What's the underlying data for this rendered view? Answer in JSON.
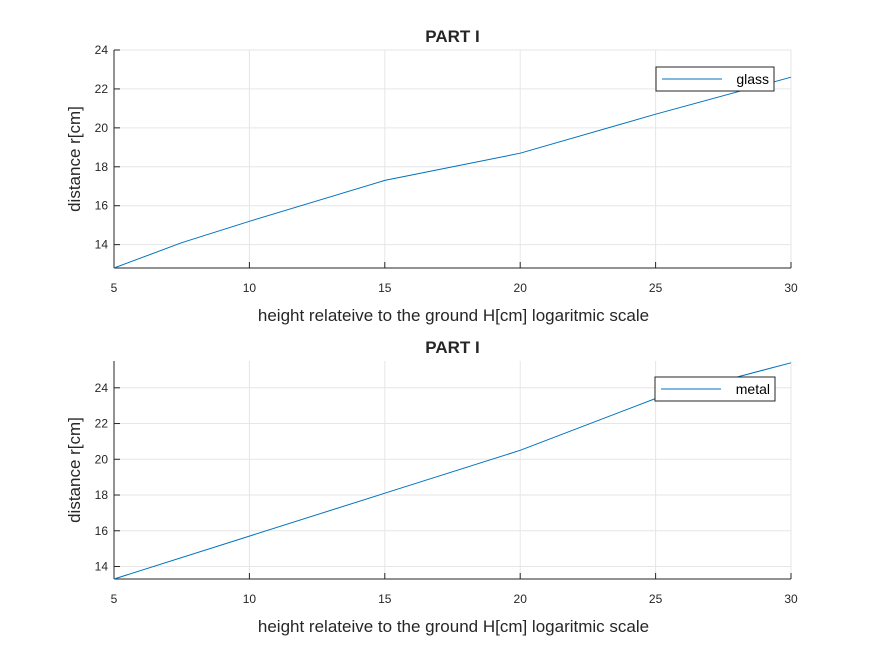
{
  "figure": {
    "background": "#ffffff",
    "line_color": "#0072BD",
    "grid_color": "#e6e6e6"
  },
  "chart_data": [
    {
      "type": "line",
      "title": "PART I",
      "xlabel": "height relateive to the ground H[cm] logaritmic scale",
      "ylabel": "distance r[cm]",
      "xlim": [
        5,
        30
      ],
      "ylim": [
        12.8,
        24
      ],
      "xticks": [
        5,
        10,
        15,
        20,
        25,
        30
      ],
      "yticks": [
        14,
        16,
        18,
        20,
        22,
        24
      ],
      "grid": true,
      "legend_position": "top-right",
      "series": [
        {
          "name": "glass",
          "x": [
            5,
            7.5,
            10,
            15,
            20,
            25,
            30
          ],
          "y": [
            12.8,
            14.1,
            15.2,
            17.3,
            18.7,
            20.7,
            22.6
          ]
        }
      ]
    },
    {
      "type": "line",
      "title": "PART I",
      "xlabel": "height relateive to the ground H[cm] logaritmic scale",
      "ylabel": "distance r[cm]",
      "xlim": [
        5,
        30
      ],
      "ylim": [
        13.3,
        25.5
      ],
      "xticks": [
        5,
        10,
        15,
        20,
        25,
        30
      ],
      "yticks": [
        14,
        16,
        18,
        20,
        22,
        24
      ],
      "grid": true,
      "legend_position": "top-right",
      "series": [
        {
          "name": "metal",
          "x": [
            5,
            10,
            15,
            20,
            25,
            30
          ],
          "y": [
            13.3,
            15.7,
            18.1,
            20.5,
            23.4,
            25.4
          ]
        }
      ]
    }
  ]
}
